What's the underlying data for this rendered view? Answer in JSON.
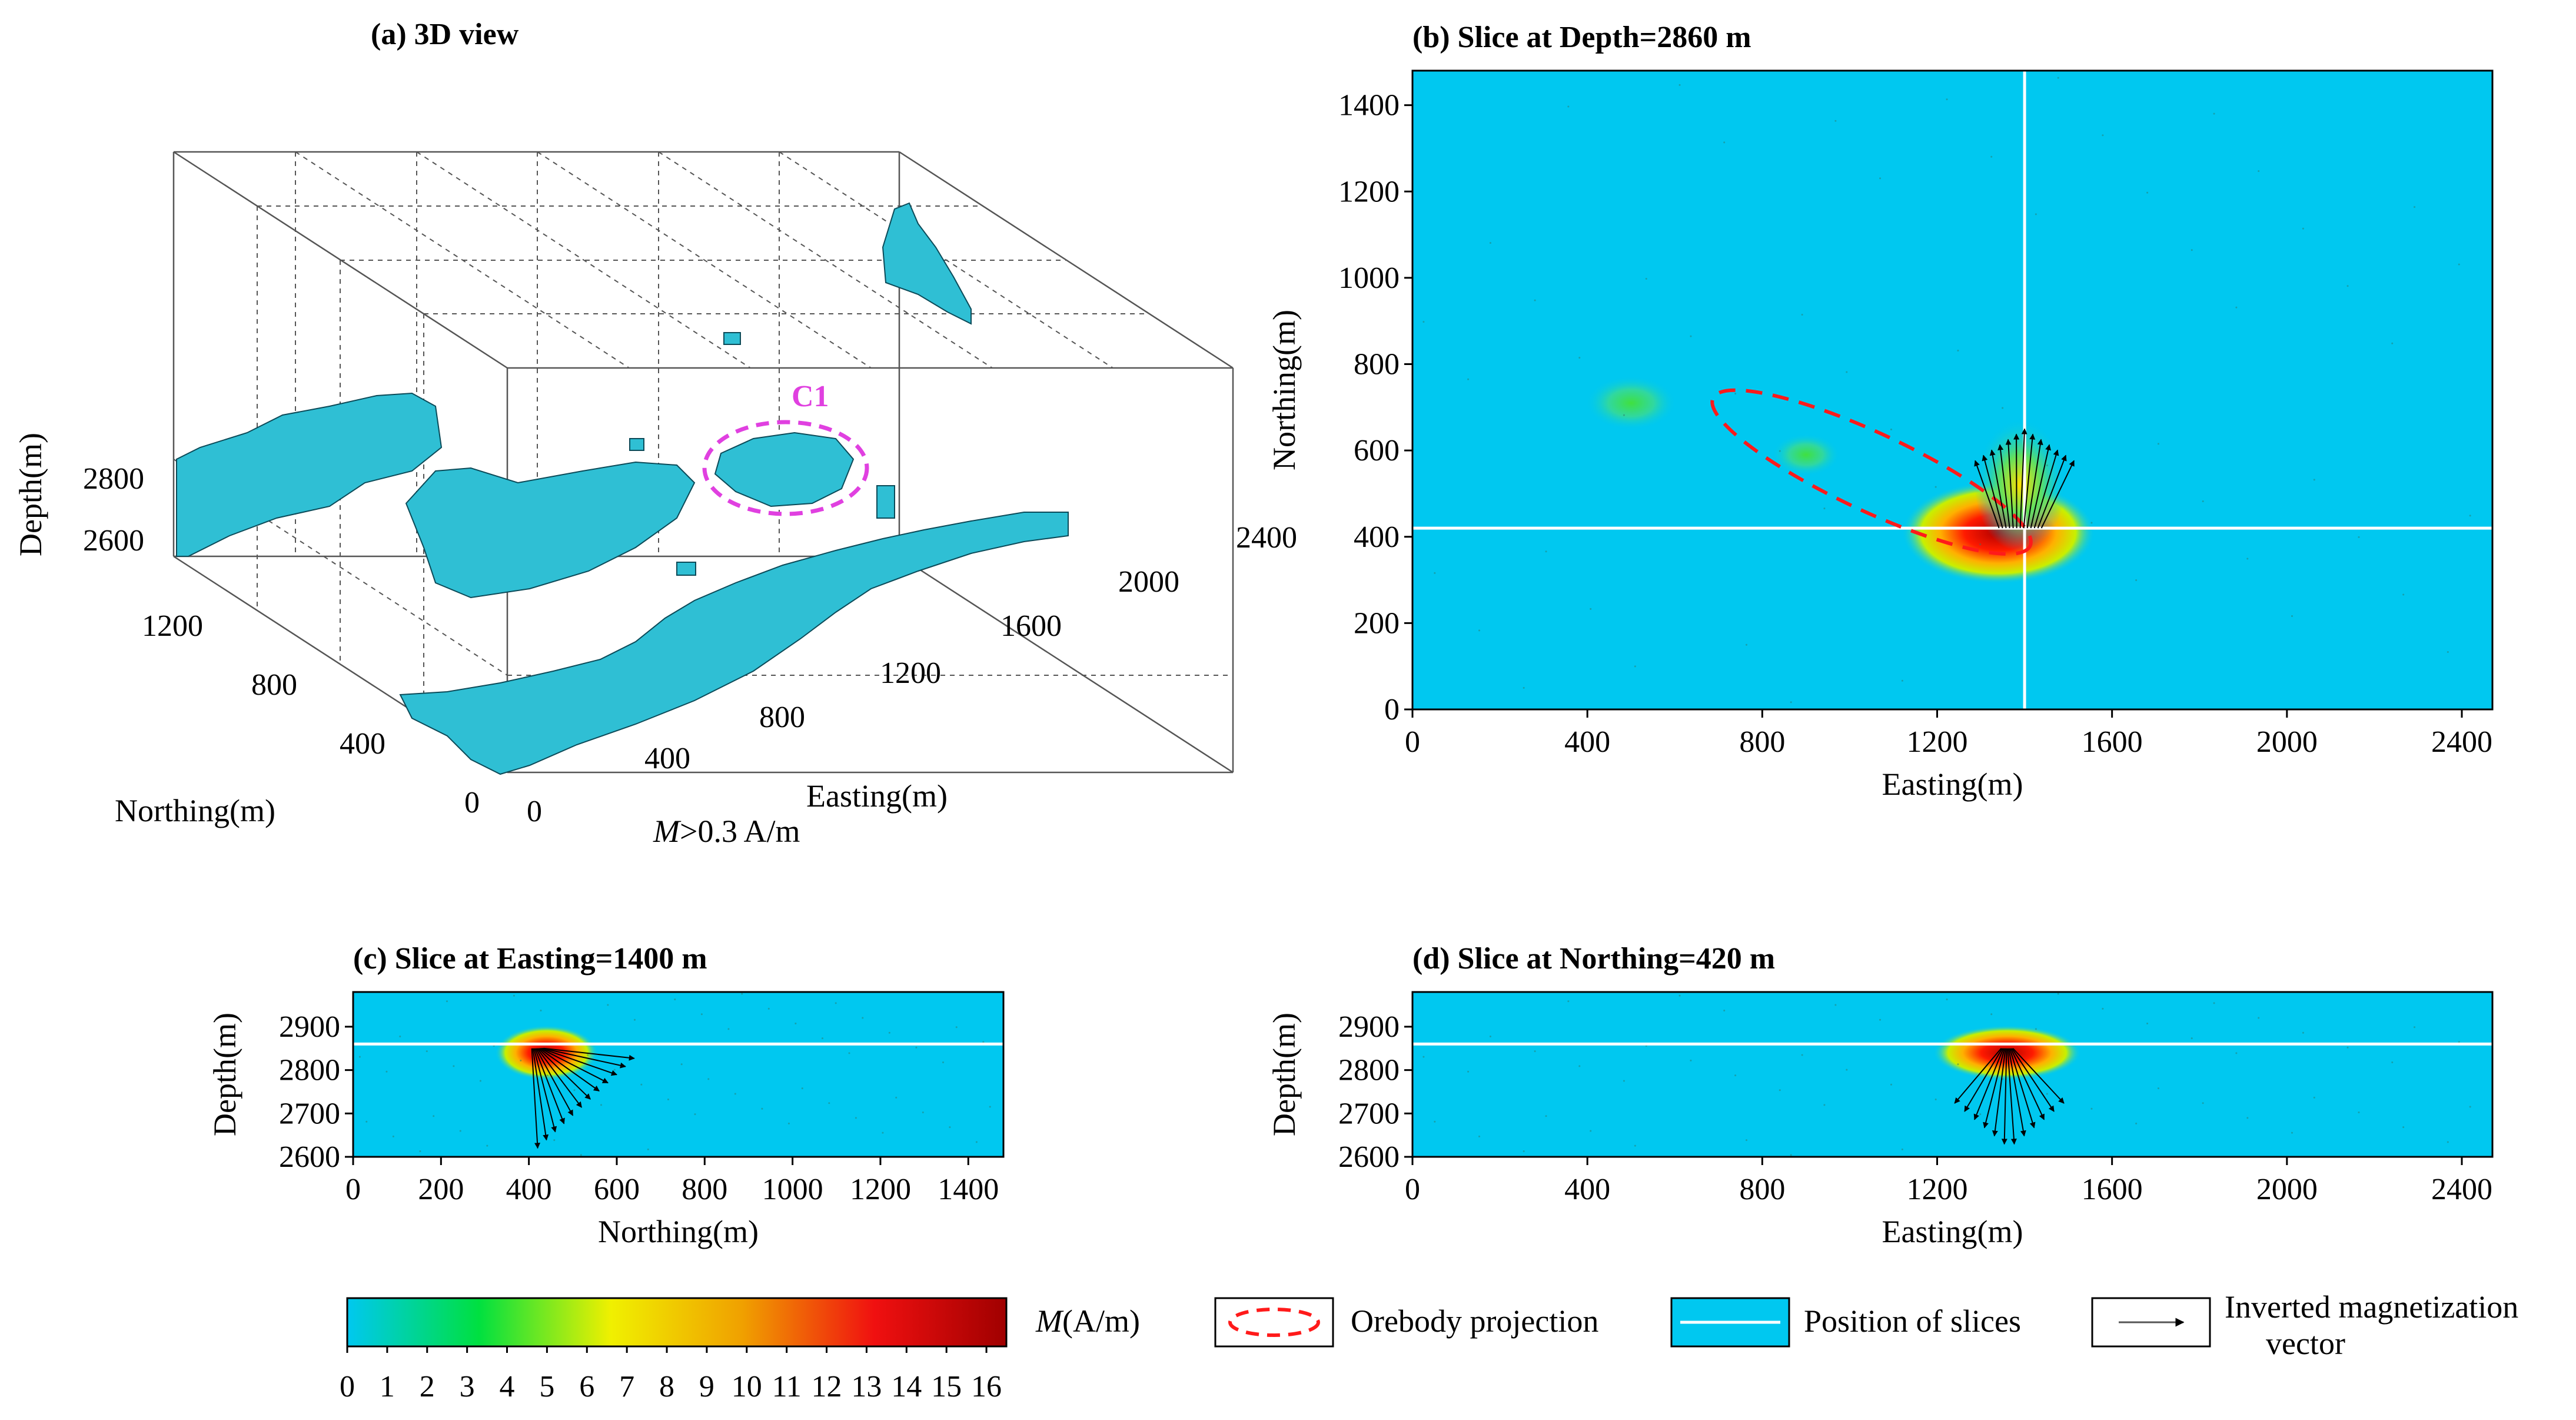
{
  "chart_data": [
    {
      "id": "a",
      "type": "scatter",
      "title": "(a) 3D view",
      "zlabel": "Depth(m)",
      "ylabel": "Northing(m)",
      "xlabel": "Easting(m)",
      "depth_ticks": [
        "2800",
        "2600"
      ],
      "northing_ticks": [
        "1200",
        "800",
        "400",
        "0"
      ],
      "easting_ticks": [
        "0",
        "400",
        "800",
        "1200",
        "1600",
        "2000",
        "2400"
      ],
      "annotation": "C1",
      "threshold_label_italic": "M",
      "threshold_label_rest": ">0.3 A/m",
      "colors": {
        "voxel": "#2fbfd4",
        "annotation": "#e040e0"
      }
    },
    {
      "id": "b",
      "type": "heatmap",
      "title": "(b) Slice at Depth=2860 m",
      "xlabel": "Easting(m)",
      "ylabel": "Northing(m)",
      "xlim": [
        0,
        2470
      ],
      "ylim": [
        0,
        1480
      ],
      "x_ticks": [
        0,
        400,
        800,
        1200,
        1600,
        2000,
        2400
      ],
      "y_ticks": [
        0,
        200,
        400,
        600,
        800,
        1000,
        1200,
        1400
      ],
      "slice_lines": {
        "easting": 1400,
        "northing": 420
      },
      "anomalies": [
        {
          "x": 1340,
          "y": 410,
          "rx": 170,
          "ry": 85,
          "peak": 14
        },
        {
          "x": 1390,
          "y": 520,
          "rx": 80,
          "ry": 110,
          "peak": 6
        },
        {
          "x": 900,
          "y": 590,
          "rx": 60,
          "ry": 35,
          "peak": 2.5
        },
        {
          "x": 500,
          "y": 710,
          "rx": 80,
          "ry": 45,
          "peak": 2
        }
      ],
      "orebody": {
        "cx": 1050,
        "cy": 550,
        "rx": 400,
        "ry": 90,
        "angle_deg": -25
      },
      "vectors_origin": {
        "x": 1390,
        "y": 420
      },
      "vectors_up_to": {
        "x": 1400,
        "y": 650
      }
    },
    {
      "id": "c",
      "type": "heatmap",
      "title": "(c) Slice at Easting=1400 m",
      "xlabel": "Northing(m)",
      "ylabel": "Depth(m)",
      "xlim": [
        0,
        1480
      ],
      "ylim": [
        2600,
        2980
      ],
      "x_ticks": [
        0,
        200,
        400,
        600,
        800,
        1000,
        1200,
        1400
      ],
      "y_ticks": [
        2600,
        2700,
        2800,
        2900
      ],
      "slice_line_depth": 2860,
      "anomaly": {
        "x": 440,
        "y": 2840,
        "rx": 90,
        "ry": 45,
        "peak": 14
      },
      "vectors_origin": {
        "x": 420,
        "y": 2850
      },
      "vectors_reach": {
        "x_max": 640,
        "y_min": 2620
      }
    },
    {
      "id": "d",
      "type": "heatmap",
      "title": "(d) Slice at Northing=420 m",
      "xlabel": "Easting(m)",
      "ylabel": "Depth(m)",
      "xlim": [
        0,
        2470
      ],
      "ylim": [
        2600,
        2980
      ],
      "x_ticks": [
        0,
        400,
        800,
        1200,
        1600,
        2000,
        2400
      ],
      "y_ticks": [
        2600,
        2700,
        2800,
        2900
      ],
      "slice_line_depth": 2860,
      "anomaly": {
        "x": 1360,
        "y": 2840,
        "rx": 130,
        "ry": 45,
        "peak": 14
      },
      "vectors_origin": {
        "x": 1360,
        "y": 2850
      },
      "vectors_reach": {
        "x_min": 1240,
        "x_max": 1490,
        "y_min": 2620
      }
    }
  ],
  "colorbar": {
    "label_italic": "M",
    "label_rest": "(A/m)",
    "ticks": [
      "0",
      "1",
      "2",
      "3",
      "4",
      "5",
      "6",
      "7",
      "8",
      "9",
      "10",
      "11",
      "12",
      "13",
      "14",
      "15",
      "16"
    ],
    "range": [
      0,
      16.5
    ],
    "stops": [
      "#00c8f0",
      "#00e040",
      "#f0f000",
      "#f0a000",
      "#f01010",
      "#a00000"
    ]
  },
  "legend": [
    {
      "key": "orebody",
      "label": "Orebody projection"
    },
    {
      "key": "slices",
      "label": "Position of slices"
    },
    {
      "key": "vector",
      "label": "Inverted magnetization",
      "label2": "vector"
    }
  ],
  "colors": {
    "background": "#00c8f0",
    "slice_line": "#ffffff",
    "orebody": "#ff1a1a",
    "vector": "#000000"
  }
}
